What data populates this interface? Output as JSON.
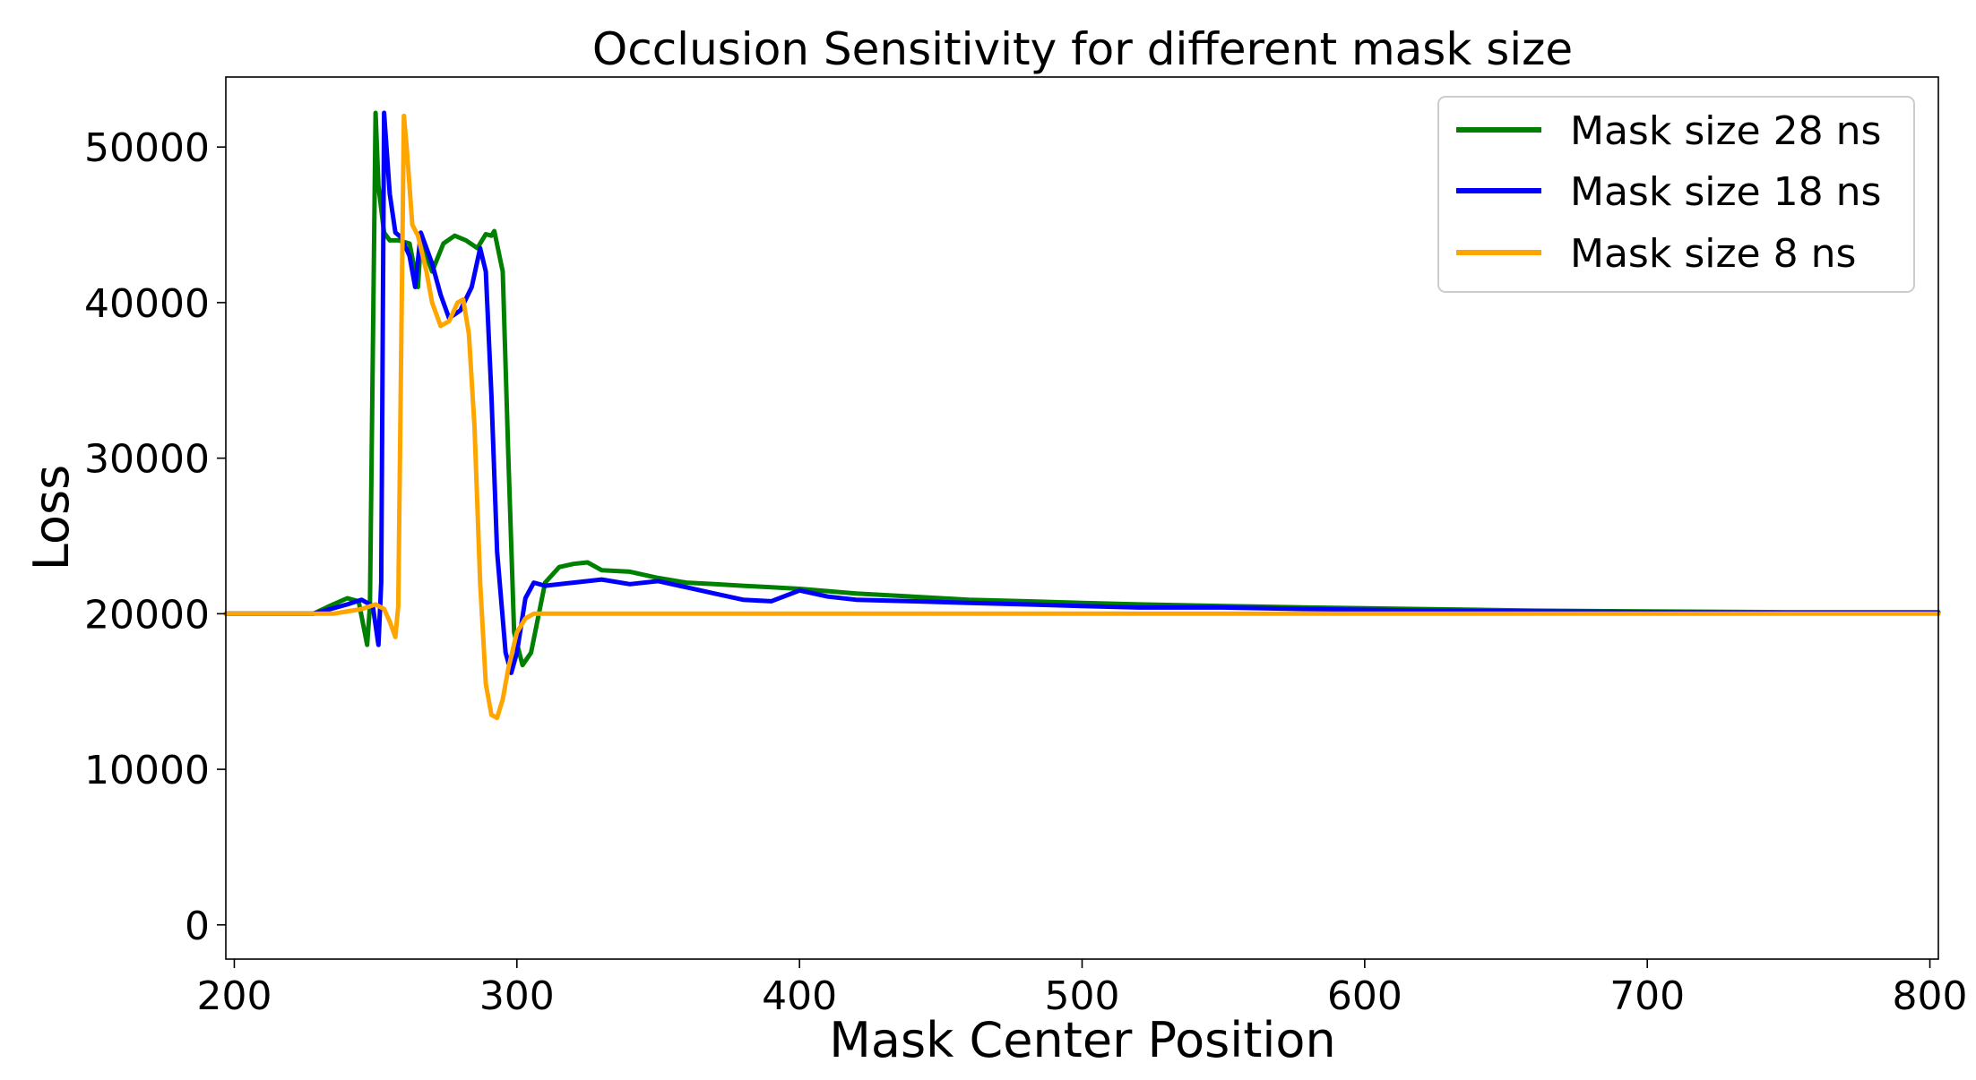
{
  "chart_data": {
    "type": "line",
    "title": "Occlusion Sensitivity for different mask size",
    "xlabel": "Mask Center Position",
    "ylabel": "Loss",
    "xlim": [
      197,
      803
    ],
    "ylim": [
      -2200,
      54500
    ],
    "xticks": [
      200,
      300,
      400,
      500,
      600,
      700,
      800
    ],
    "xtick_labels": [
      "200",
      "300",
      "400",
      "500",
      "600",
      "700",
      "800"
    ],
    "yticks": [
      0,
      10000,
      20000,
      30000,
      40000,
      50000
    ],
    "ytick_labels": [
      "0",
      "10000",
      "20000",
      "30000",
      "40000",
      "50000"
    ],
    "grid": false,
    "legend_position": "top-right",
    "series": [
      {
        "name": "Mask size 28 ns",
        "color": "#008000",
        "x": [
          197,
          228,
          235,
          240,
          244,
          247,
          248,
          250,
          251,
          253,
          255,
          258,
          262,
          265,
          266,
          268,
          270,
          274,
          278,
          282,
          286,
          289,
          291,
          292,
          295,
          297,
          299,
          302,
          305,
          310,
          315,
          320,
          325,
          330,
          340,
          350,
          360,
          370,
          380,
          390,
          400,
          420,
          440,
          460,
          480,
          500,
          520,
          550,
          580,
          620,
          660,
          700,
          750,
          803
        ],
        "y": [
          20000,
          20000,
          20600,
          21000,
          20800,
          18000,
          20500,
          52200,
          47500,
          44500,
          44000,
          44000,
          43800,
          41000,
          44000,
          43000,
          42000,
          43800,
          44300,
          44000,
          43500,
          44400,
          44300,
          44600,
          42000,
          30000,
          18800,
          16700,
          17500,
          22000,
          23000,
          23200,
          23300,
          22800,
          22700,
          22300,
          22000,
          21900,
          21800,
          21700,
          21600,
          21300,
          21100,
          20900,
          20800,
          20700,
          20600,
          20500,
          20400,
          20300,
          20200,
          20150,
          20100,
          20100
        ]
      },
      {
        "name": "Mask size 18 ns",
        "color": "#0000ff",
        "x": [
          197,
          228,
          240,
          245,
          249,
          251,
          252,
          253,
          255,
          257,
          259,
          262,
          264,
          266,
          268,
          270,
          273,
          276,
          280,
          284,
          287,
          289,
          291,
          293,
          296,
          298,
          300,
          303,
          306,
          310,
          320,
          330,
          340,
          350,
          360,
          370,
          380,
          390,
          400,
          410,
          420,
          440,
          460,
          480,
          500,
          520,
          550,
          580,
          620,
          660,
          700,
          750,
          803
        ],
        "y": [
          20000,
          20000,
          20600,
          20900,
          20500,
          18000,
          22000,
          52200,
          47000,
          44500,
          44200,
          43000,
          41000,
          44500,
          43500,
          42500,
          40500,
          39000,
          39500,
          41000,
          43500,
          42000,
          34000,
          24000,
          17500,
          16200,
          17500,
          21000,
          22000,
          21800,
          22000,
          22200,
          21900,
          22100,
          21700,
          21300,
          20900,
          20800,
          21500,
          21100,
          20900,
          20800,
          20700,
          20600,
          20500,
          20400,
          20400,
          20300,
          20200,
          20150,
          20100,
          20050,
          20050
        ]
      },
      {
        "name": "Mask size 8 ns",
        "color": "#ffa500",
        "x": [
          197,
          235,
          245,
          250,
          253,
          255,
          257,
          258,
          260,
          261,
          263,
          265,
          268,
          270,
          273,
          276,
          279,
          281,
          283,
          285,
          287,
          289,
          291,
          293,
          295,
          297,
          300,
          303,
          306,
          310,
          320,
          400,
          500,
          600,
          700,
          803
        ],
        "y": [
          20000,
          20000,
          20300,
          20600,
          20300,
          19500,
          18500,
          20500,
          52000,
          50000,
          45000,
          44300,
          42000,
          40000,
          38500,
          38800,
          40000,
          40200,
          38000,
          32000,
          22000,
          15500,
          13500,
          13300,
          14500,
          16500,
          18800,
          19700,
          20000,
          20000,
          20000,
          20000,
          20000,
          20000,
          20000,
          20000
        ]
      }
    ]
  }
}
